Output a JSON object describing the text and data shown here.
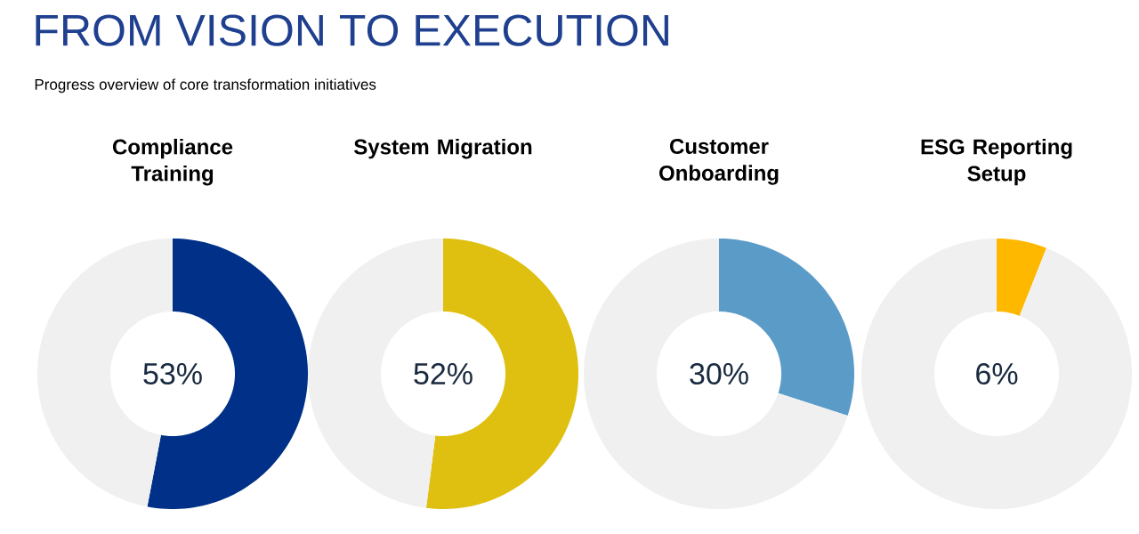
{
  "chart_data": [
    {
      "type": "other",
      "title": "FROM VISION TO EXECUTION",
      "subtitle": "Progress overview of core transformation initiatives"
    },
    {
      "type": "donut",
      "title": "Compliance Training",
      "categories": [
        null,
        null
      ],
      "values": [
        53,
        47
      ],
      "colors": [
        "#003087",
        "#f0f0f0"
      ],
      "annotations": [
        "53%"
      ]
    },
    {
      "type": "donut",
      "title": "System Migration",
      "categories": [
        null,
        null
      ],
      "values": [
        52,
        48
      ],
      "colors": [
        "#dfc010",
        "#f0f0f0"
      ],
      "annotations": [
        "52%"
      ]
    },
    {
      "type": "donut",
      "title": "Customer Onboarding",
      "categories": [
        null,
        null
      ],
      "values": [
        30,
        70
      ],
      "colors": [
        "#5b9bc8",
        "#f0f0f0"
      ],
      "annotations": [
        "30%"
      ]
    },
    {
      "type": "donut",
      "title": "ESG Reporting Setup",
      "categories": [
        null,
        null
      ],
      "values": [
        6,
        94
      ],
      "colors": [
        "#ffb800",
        "#f0f0f0"
      ],
      "annotations": [
        "6%"
      ]
    }
  ]
}
